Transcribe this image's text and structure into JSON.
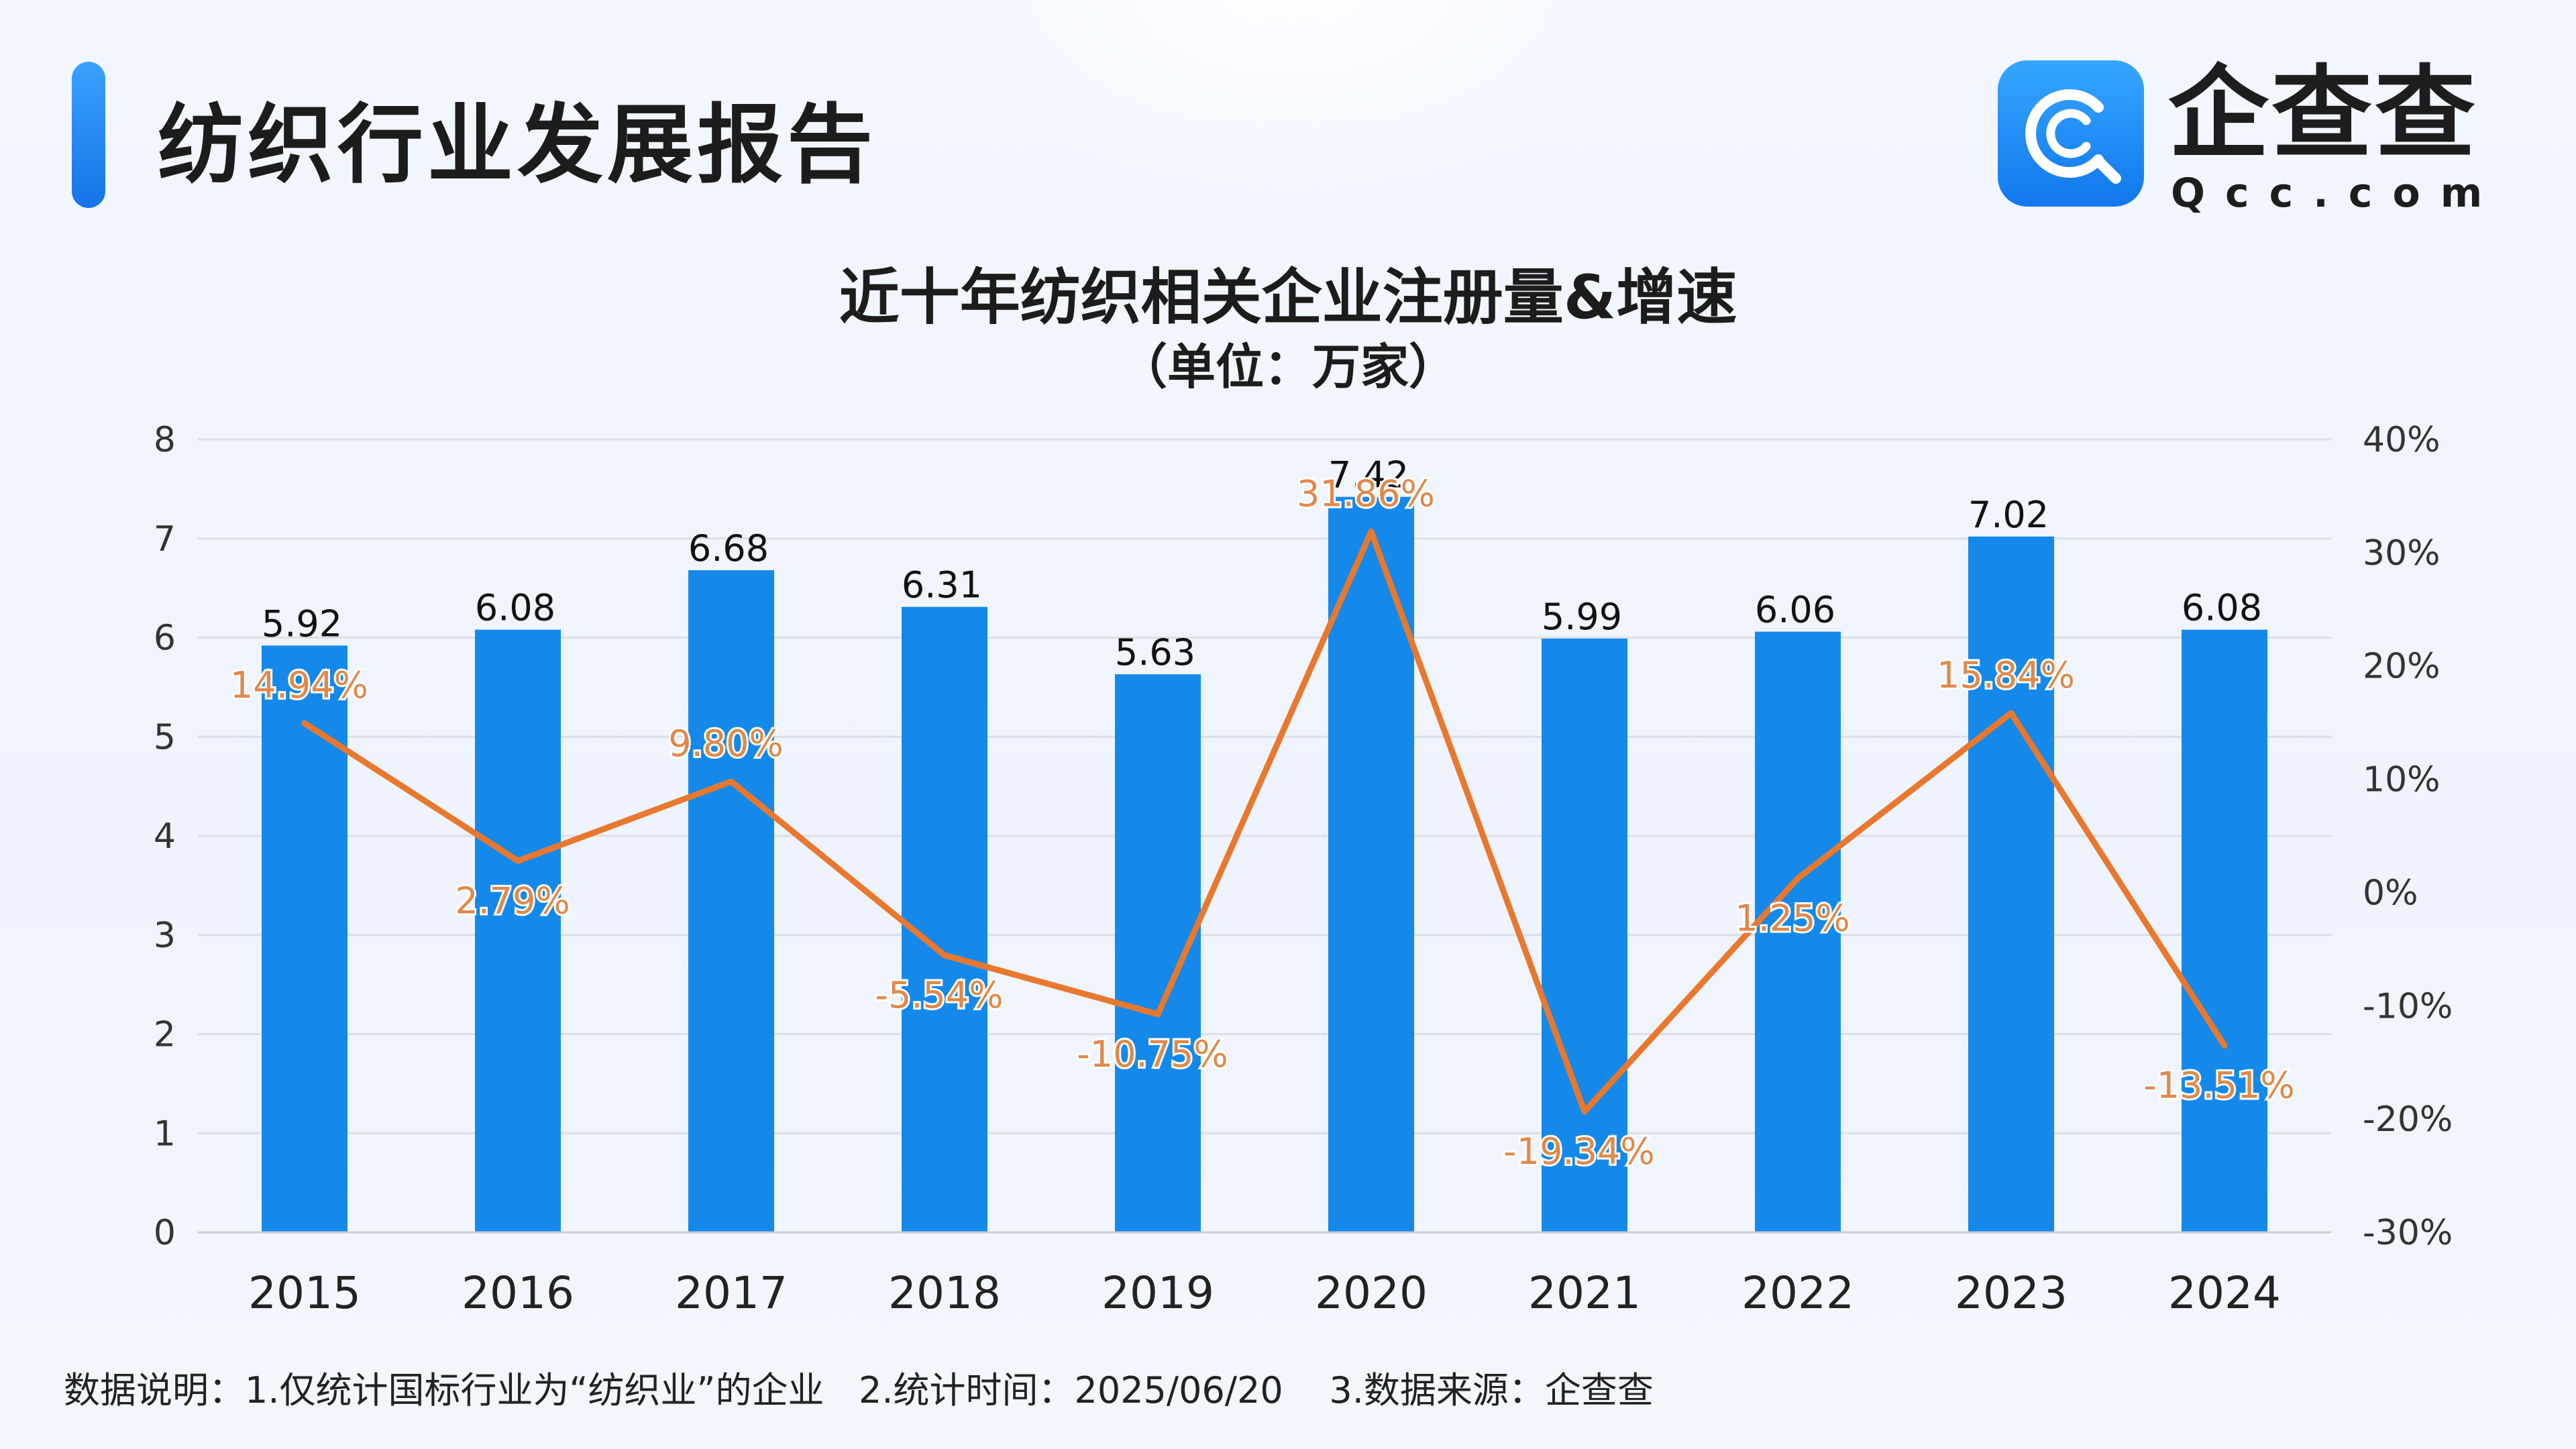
{
  "header": {
    "title": "纺织行业发展报告"
  },
  "logo": {
    "name": "企查查",
    "domain": "Qcc.com"
  },
  "colors": {
    "bar": "#1589ea",
    "line": "#e8782e",
    "line_label": "#e0884a",
    "grid": "#dcdfe5"
  },
  "chart_data": {
    "type": "bar",
    "title": "近十年纺织相关企业注册量&增速",
    "subtitle": "（单位：万家）",
    "categories": [
      "2015",
      "2016",
      "2017",
      "2018",
      "2019",
      "2020",
      "2021",
      "2022",
      "2023",
      "2024"
    ],
    "series": [
      {
        "type": "bar",
        "axis": "left",
        "values": [
          5.92,
          6.08,
          6.68,
          6.31,
          5.63,
          7.42,
          5.99,
          6.06,
          7.02,
          6.08
        ],
        "labels": [
          "5.92",
          "6.08",
          "6.68",
          "6.31",
          "5.63",
          "7.42",
          "5.99",
          "6.06",
          "7.02",
          "6.08"
        ]
      },
      {
        "type": "line",
        "axis": "right",
        "values": [
          14.94,
          2.79,
          9.8,
          -5.54,
          -10.75,
          31.86,
          -19.34,
          1.25,
          15.84,
          -13.51
        ],
        "labels": [
          "14.94%",
          "2.79%",
          "9.80%",
          "-5.54%",
          "-10.75%",
          "31.86%",
          "-19.34%",
          "1.25%",
          "15.84%",
          "-13.51%"
        ]
      }
    ],
    "ylim": [
      0,
      8
    ],
    "yticks": [
      "0",
      "1",
      "2",
      "3",
      "4",
      "5",
      "6",
      "7",
      "8"
    ],
    "y2lim": [
      -30,
      40
    ],
    "y2ticks": [
      "-30%",
      "-20%",
      "-10%",
      "0%",
      "10%",
      "20%",
      "30%",
      "40%"
    ],
    "grid": true
  },
  "footnote": "数据说明：1.仅统计国标行业为“纺织业”的企业   2.统计时间：2025/06/20    3.数据来源：企查查"
}
